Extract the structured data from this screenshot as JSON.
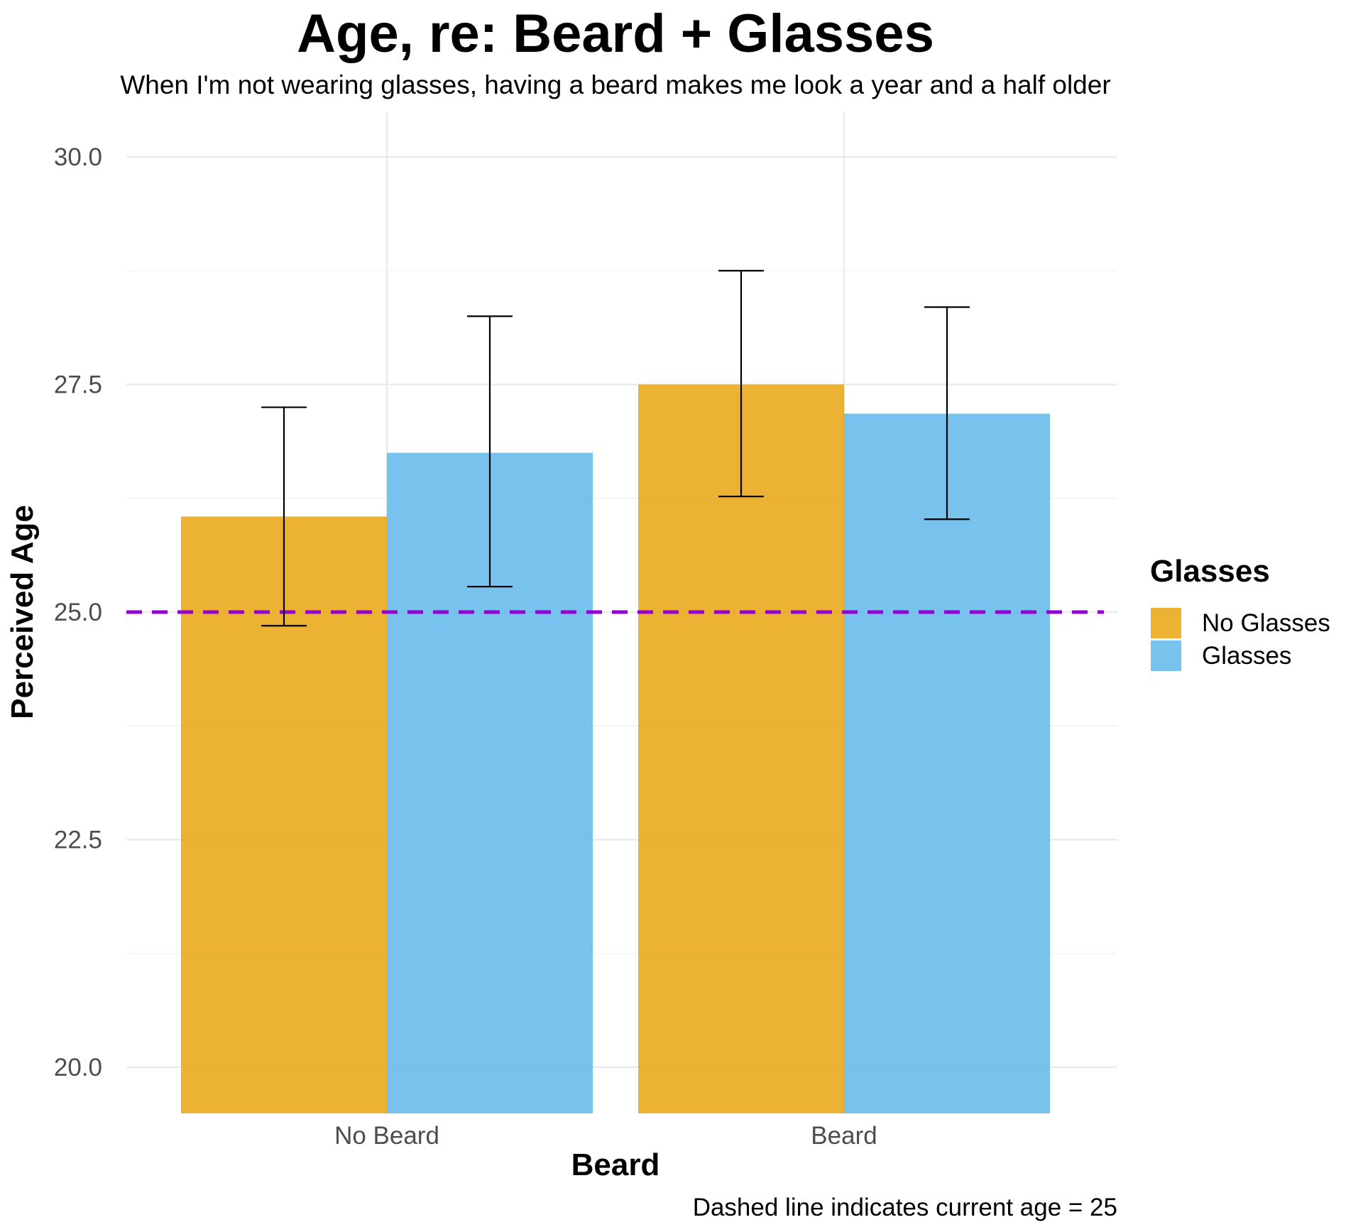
{
  "chart_data": {
    "type": "bar",
    "title": "Age, re: Beard + Glasses",
    "subtitle": "When I'm not wearing glasses, having a beard makes me look a year and a half older",
    "xlabel": "Beard",
    "ylabel": "Perceived Age",
    "caption": "Dashed line indicates current age = 25",
    "categories": [
      "No Beard",
      "Beard"
    ],
    "legend_title": "Glasses",
    "legend_position": "right",
    "series": [
      {
        "name": "No Glasses",
        "color": "#E69F00",
        "values": [
          26.05,
          27.5
        ],
        "error_low": [
          24.85,
          26.27
        ],
        "error_high": [
          27.25,
          28.75
        ]
      },
      {
        "name": "Glasses",
        "color": "#56B4E9",
        "values": [
          26.75,
          27.18
        ],
        "error_low": [
          25.28,
          26.02
        ],
        "error_high": [
          28.25,
          28.35
        ]
      }
    ],
    "yticks": [
      "20.0",
      "22.5",
      "25.0",
      "27.5",
      "30.0"
    ],
    "ylim": [
      19.5,
      30.5
    ],
    "reference_line": {
      "y": 25,
      "style": "dashed",
      "color": "#9400D3"
    },
    "grid": true
  }
}
